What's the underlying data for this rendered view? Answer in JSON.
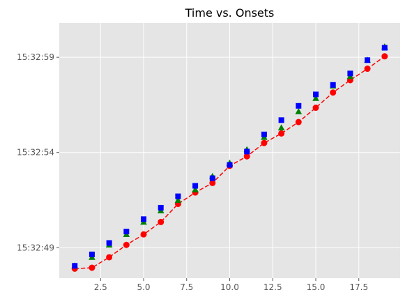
{
  "chart_data": {
    "type": "scatter",
    "title": "Time vs. Onsets",
    "xlabel": "",
    "ylabel": "",
    "x": [
      1,
      2,
      3,
      4,
      5,
      6,
      7,
      8,
      9,
      10,
      11,
      12,
      13,
      14,
      15,
      16,
      17,
      18,
      19
    ],
    "xlim": [
      0.1,
      19.9
    ],
    "ylim": [
      "15:32:47.4",
      "15:33:00.8"
    ],
    "x_ticks": [
      2.5,
      5.0,
      7.5,
      10.0,
      12.5,
      15.0,
      17.5
    ],
    "x_tick_labels": [
      "2.5",
      "5.0",
      "7.5",
      "10.0",
      "12.5",
      "15.0",
      "17.5"
    ],
    "y_ticks": [
      "15:32:49",
      "15:32:54",
      "15:32:59"
    ],
    "y_tick_labels": [
      "15:32:49",
      "15:32:54",
      "15:32:59"
    ],
    "grid": true,
    "style": "ggplot",
    "series": [
      {
        "marker": "circle",
        "line": "dashed",
        "color": "#ff0000",
        "values": [
          "15:32:47.9",
          "15:32:47.95",
          "15:32:48.5",
          "15:32:49.15",
          "15:32:49.7",
          "15:32:50.35",
          "15:32:51.3",
          "15:32:51.9",
          "15:32:52.4",
          "15:32:53.3",
          "15:32:53.8",
          "15:32:54.5",
          "15:32:55.0",
          "15:32:55.6",
          "15:32:56.35",
          "15:32:57.15",
          "15:32:57.8",
          "15:32:58.4",
          "15:32:59.05"
        ]
      },
      {
        "marker": "triangle",
        "line": "none",
        "color": "#008000",
        "values": [
          "15:32:48.05",
          "15:32:48.5",
          "15:32:49.15",
          "15:32:49.7",
          "15:32:50.35",
          "15:32:50.95",
          "15:32:51.5",
          "15:32:52.05",
          "15:32:52.75",
          "15:32:53.45",
          "15:32:54.15",
          "15:32:54.8",
          "15:32:55.3",
          "15:32:56.15",
          "15:32:56.85",
          "15:32:57.5",
          "15:32:58.0",
          "15:32:58.85",
          "15:32:59.55"
        ]
      },
      {
        "marker": "square",
        "line": "none",
        "color": "#0000ff",
        "values": [
          "15:32:48.05",
          "15:32:48.65",
          "15:32:49.25",
          "15:32:49.85",
          "15:32:50.5",
          "15:32:51.1",
          "15:32:51.7",
          "15:32:52.25",
          "15:32:52.65",
          "15:32:53.35",
          "15:32:54.05",
          "15:32:54.95",
          "15:32:55.7",
          "15:32:56.45",
          "15:32:57.05",
          "15:32:57.55",
          "15:32:58.15",
          "15:32:58.85",
          "15:32:59.5"
        ]
      }
    ]
  }
}
